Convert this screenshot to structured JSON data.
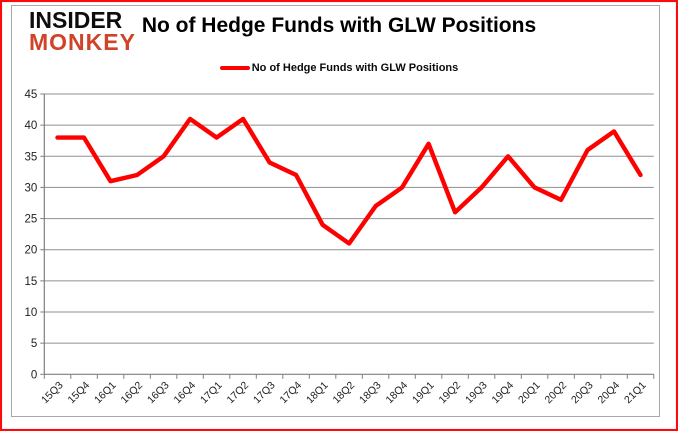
{
  "page": {
    "background": "#ffffff",
    "outer_border_color": "#fb0b0b",
    "inner_frame_color": "#a8a8a8"
  },
  "logo": {
    "line1": "INSIDER",
    "line2": "MONKEY",
    "line1_color": "#0d0d0d",
    "line2_color": "#cf4429"
  },
  "header": {
    "title": "No of Hedge Funds with GLW Positions"
  },
  "legend": {
    "label": "No of Hedge Funds with GLW Positions",
    "swatch_color": "#fe0000"
  },
  "chart_data": {
    "type": "line",
    "title": "No of Hedge Funds with GLW Positions",
    "series_name": "No of Hedge Funds with GLW Positions",
    "categories": [
      "15Q3",
      "15Q4",
      "16Q1",
      "16Q2",
      "16Q3",
      "16Q4",
      "17Q1",
      "17Q2",
      "17Q3",
      "17Q4",
      "18Q1",
      "18Q2",
      "18Q3",
      "18Q4",
      "19Q1",
      "19Q2",
      "19Q3",
      "19Q4",
      "20Q1",
      "20Q2",
      "20Q3",
      "20Q4",
      "21Q1"
    ],
    "values": [
      38,
      38,
      31,
      32,
      35,
      41,
      38,
      41,
      34,
      32,
      24,
      21,
      27,
      30,
      37,
      26,
      30,
      35,
      30,
      28,
      36,
      39,
      32
    ],
    "xlabel": "",
    "ylabel": "",
    "ylim": [
      0,
      45
    ],
    "ytick_step": 5,
    "yticks": [
      0,
      5,
      10,
      15,
      20,
      25,
      30,
      35,
      40,
      45
    ],
    "grid": true,
    "legend_position": "top",
    "line_color": "#fe0000",
    "gridline_color": "#8f8f8f",
    "axis_color": "#7f7f7f",
    "tick_label_color": "#1f1f1f"
  }
}
